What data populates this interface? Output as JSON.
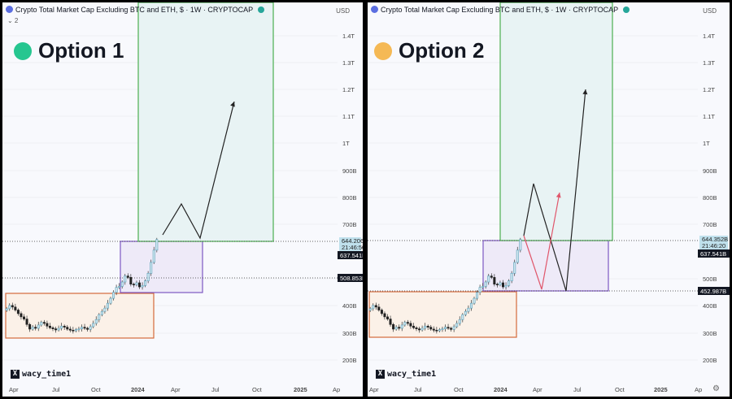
{
  "header_title": "Crypto Total Market Cap Excluding BTC and ETH, $ · 1W · CRYPTOCAP",
  "header_sub": "⌄ 2",
  "currency": "USD",
  "watermark": "wacy_time1",
  "gear_icon": "⚙",
  "y_labels": [
    "1.4T",
    "1.3T",
    "1.2T",
    "1.1T",
    "1T",
    "900B",
    "800B",
    "700B",
    "500B",
    "400B",
    "300B",
    "200B"
  ],
  "x_labels": [
    "Apr",
    "Jul",
    "Oct",
    "2024",
    "Apr",
    "Jul",
    "Oct",
    "2025",
    "Ap"
  ],
  "panels": [
    {
      "id": "left",
      "option_label": "Option 1",
      "option_color": "#26c690",
      "price_label": "644.206B",
      "countdown": "21:46:50",
      "level_1": "637.541B",
      "level_2": "508.853B"
    },
    {
      "id": "right",
      "option_label": "Option 2",
      "option_color": "#f5b955",
      "price_label": "644.352B",
      "countdown": "21:46:20",
      "level_1": "637.541B",
      "level_2": "452.987B"
    }
  ],
  "chart_data": {
    "type": "candlestick",
    "title": "Crypto Total Market Cap Excluding BTC and ETH, $ · 1W · CRYPTOCAP",
    "y_unit": "USD",
    "ylim": [
      170,
      1480
    ],
    "y_ticks": [
      200,
      300,
      400,
      500,
      700,
      800,
      900,
      1000,
      1100,
      1200,
      1300,
      1400
    ],
    "weekly_close_billions": [
      390,
      402,
      396,
      385,
      372,
      360,
      352,
      332,
      315,
      322,
      318,
      330,
      340,
      336,
      326,
      320,
      316,
      312,
      318,
      326,
      322,
      315,
      311,
      309,
      313,
      316,
      322,
      318,
      314,
      324,
      336,
      350,
      368,
      380,
      392,
      410,
      428,
      450,
      468,
      472,
      488,
      510,
      505,
      480,
      478,
      485,
      470,
      475,
      492,
      520,
      560,
      605,
      644
    ],
    "current_price_billions": 644.2,
    "levels_billions": [
      637.541,
      508.853,
      452.987
    ]
  }
}
